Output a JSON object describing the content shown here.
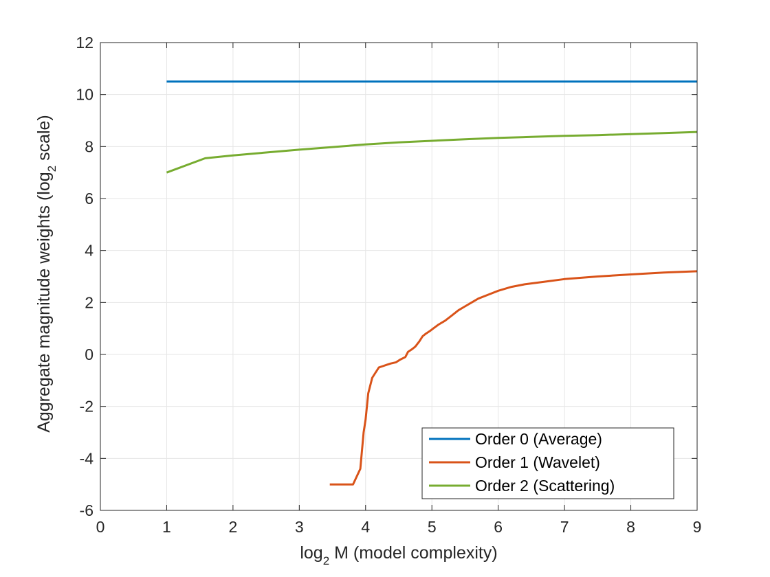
{
  "chart_data": {
    "type": "line",
    "title": "",
    "xlabel": {
      "main_pre": "log",
      "sub": "2",
      "main_post": " M (model complexity)"
    },
    "ylabel": {
      "main_pre": "Aggregate magnitude weights (log",
      "sub": "2",
      "main_post": " scale)"
    },
    "xlim": [
      0,
      9
    ],
    "ylim": [
      -6,
      12
    ],
    "xticks": [
      0,
      1,
      2,
      3,
      4,
      5,
      6,
      7,
      8,
      9
    ],
    "yticks": [
      -6,
      -4,
      -2,
      0,
      2,
      4,
      6,
      8,
      10,
      12
    ],
    "x_tick_labels": [
      "0",
      "1",
      "2",
      "3",
      "4",
      "5",
      "6",
      "7",
      "8",
      "9"
    ],
    "y_tick_labels": [
      "-6",
      "-4",
      "-2",
      "0",
      "2",
      "4",
      "6",
      "8",
      "10",
      "12"
    ],
    "grid": true,
    "legend_position": "bottom-right",
    "series": [
      {
        "name": "Order 0 (Average)",
        "color": "#0072BD",
        "x": [
          1,
          9
        ],
        "y": [
          10.5,
          10.5
        ]
      },
      {
        "name": "Order 1 (Wavelet)",
        "color": "#D95319",
        "x": [
          3.46,
          3.58,
          3.81,
          3.92,
          3.97,
          4.0,
          4.04,
          4.1,
          4.15,
          4.2,
          4.26,
          4.32,
          4.38,
          4.46,
          4.52,
          4.6,
          4.64,
          4.7,
          4.75,
          4.81,
          4.86,
          4.91,
          4.97,
          5.02,
          5.1,
          5.2,
          5.3,
          5.4,
          5.5,
          5.6,
          5.7,
          5.85,
          6.0,
          6.2,
          6.4,
          6.7,
          7.0,
          7.5,
          8.0,
          8.5,
          9.0
        ],
        "y": [
          -5.0,
          -5.0,
          -5.0,
          -4.4,
          -3.0,
          -2.5,
          -1.5,
          -0.9,
          -0.7,
          -0.5,
          -0.45,
          -0.4,
          -0.35,
          -0.3,
          -0.2,
          -0.1,
          0.1,
          0.2,
          0.3,
          0.5,
          0.7,
          0.8,
          0.9,
          1.0,
          1.15,
          1.3,
          1.5,
          1.7,
          1.85,
          2.0,
          2.15,
          2.3,
          2.45,
          2.6,
          2.7,
          2.8,
          2.9,
          3.0,
          3.08,
          3.15,
          3.2
        ]
      },
      {
        "name": "Order 2 (Scattering)",
        "color": "#77AC30",
        "x": [
          1.0,
          1.58,
          2.0,
          2.5,
          3.0,
          3.5,
          4.0,
          4.5,
          5.0,
          5.5,
          6.0,
          6.5,
          7.0,
          7.5,
          8.0,
          8.5,
          9.0
        ],
        "y": [
          7.0,
          7.55,
          7.66,
          7.77,
          7.88,
          7.98,
          8.08,
          8.16,
          8.22,
          8.28,
          8.33,
          8.37,
          8.41,
          8.44,
          8.48,
          8.52,
          8.56
        ]
      }
    ]
  }
}
